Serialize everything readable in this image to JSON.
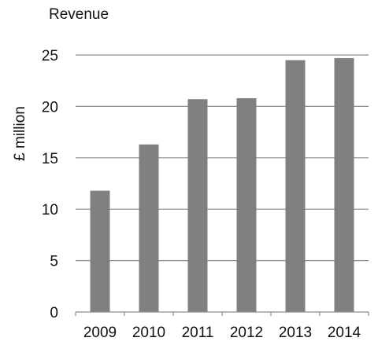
{
  "chart_data": {
    "type": "bar",
    "title": "Revenue",
    "xlabel": "",
    "ylabel": "£ million",
    "categories": [
      "2009",
      "2010",
      "2011",
      "2012",
      "2013",
      "2014"
    ],
    "values": [
      11.8,
      16.3,
      20.7,
      20.8,
      24.5,
      24.7
    ],
    "ylim": [
      0,
      25
    ],
    "yticks": [
      "0",
      "5",
      "10",
      "15",
      "20",
      "25"
    ],
    "grid": true,
    "legend": "none",
    "colors": {
      "bar": "#808080",
      "grid": "#8c8c8c",
      "text": "#111111"
    }
  }
}
